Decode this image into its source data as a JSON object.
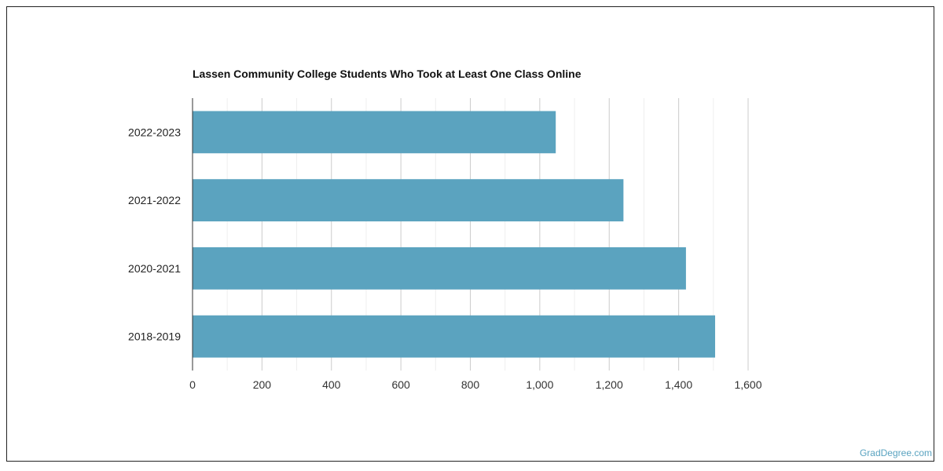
{
  "chart_data": {
    "type": "bar",
    "orientation": "horizontal",
    "title": "Lassen Community College Students Who Took at Least One Class Online",
    "categories": [
      "2022-2023",
      "2021-2022",
      "2020-2021",
      "2018-2019"
    ],
    "values": [
      1046,
      1241,
      1421,
      1505
    ],
    "xlim": [
      0,
      1600
    ],
    "x_ticks": [
      "0",
      "200",
      "400",
      "600",
      "800",
      "1,000",
      "1,200",
      "1,400",
      "1,600"
    ],
    "x_tick_values": [
      0,
      200,
      400,
      600,
      800,
      1000,
      1200,
      1400,
      1600
    ],
    "grid": true,
    "bar_color": "#5ba3bf"
  },
  "watermark": "GradDegree.com"
}
